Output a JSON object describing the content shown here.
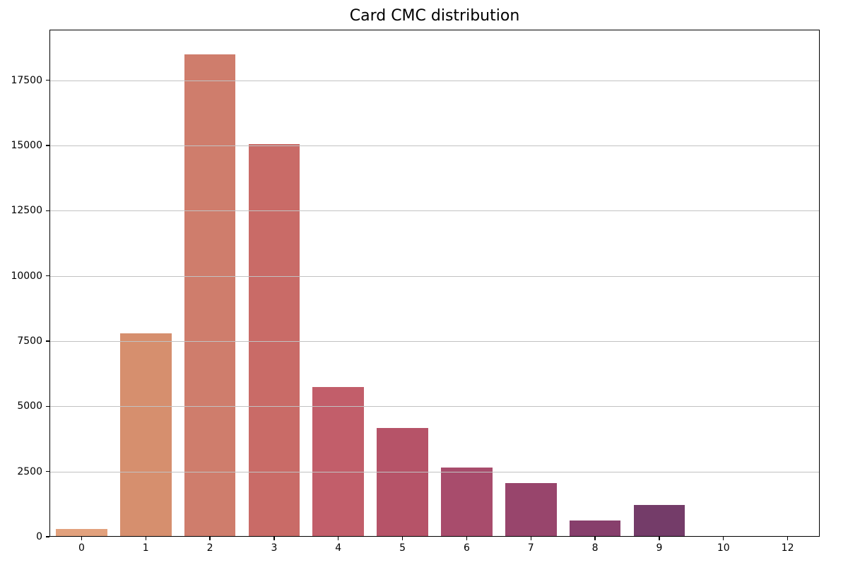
{
  "title": "Card CMC distribution",
  "chart_data": {
    "type": "bar",
    "title": "Card CMC distribution",
    "xlabel": "",
    "ylabel": "",
    "categories": [
      "0",
      "1",
      "2",
      "3",
      "4",
      "5",
      "6",
      "7",
      "8",
      "9",
      "10",
      "12"
    ],
    "values": [
      300,
      7800,
      18480,
      15050,
      5750,
      4160,
      2660,
      2050,
      610,
      1210,
      0,
      0
    ],
    "bar_colors": [
      "#E2A17D",
      "#D68F6E",
      "#CF7D6C",
      "#C96B67",
      "#C25E6A",
      "#B65368",
      "#A84C6C",
      "#98456C",
      "#873F6C",
      "#743C69",
      "#5F3566",
      "#4A2D61"
    ],
    "ylim": [
      0,
      19440
    ],
    "yticks": [
      0,
      2500,
      5000,
      7500,
      10000,
      12500,
      15000,
      17500
    ],
    "grid": "horizontal",
    "grid_on": true,
    "grid_color": "#c2c2c2",
    "grid_above_bars": true,
    "legend": "none",
    "background_color": "#ffffff",
    "spine_color": "#000000",
    "bar_rel_width": 0.8
  }
}
